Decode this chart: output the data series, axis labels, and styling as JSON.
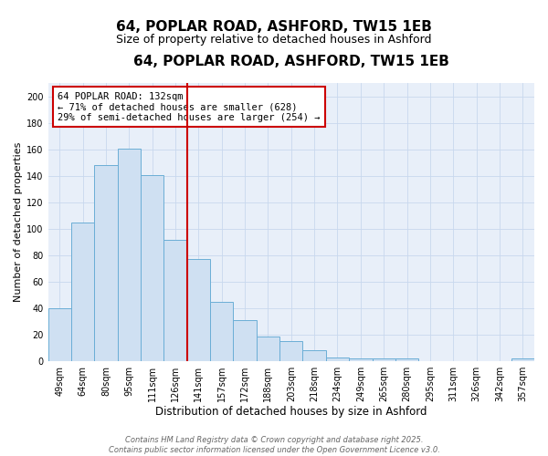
{
  "title": "64, POPLAR ROAD, ASHFORD, TW15 1EB",
  "subtitle": "Size of property relative to detached houses in Ashford",
  "xlabel": "Distribution of detached houses by size in Ashford",
  "ylabel": "Number of detached properties",
  "bin_labels": [
    "49sqm",
    "64sqm",
    "80sqm",
    "95sqm",
    "111sqm",
    "126sqm",
    "141sqm",
    "157sqm",
    "172sqm",
    "188sqm",
    "203sqm",
    "218sqm",
    "234sqm",
    "249sqm",
    "265sqm",
    "280sqm",
    "295sqm",
    "311sqm",
    "326sqm",
    "342sqm",
    "357sqm"
  ],
  "bar_heights": [
    40,
    105,
    148,
    161,
    141,
    92,
    77,
    45,
    31,
    19,
    15,
    8,
    3,
    2,
    2,
    2,
    0,
    0,
    0,
    0,
    2
  ],
  "bar_color": "#cfe0f2",
  "bar_edgecolor": "#6baed6",
  "vline_x": 5.5,
  "vline_color": "#cc0000",
  "annotation_text": "64 POPLAR ROAD: 132sqm\n← 71% of detached houses are smaller (628)\n29% of semi-detached houses are larger (254) →",
  "annotation_box_edgecolor": "#cc0000",
  "annotation_box_facecolor": "#ffffff",
  "ylim": [
    0,
    210
  ],
  "yticks": [
    0,
    20,
    40,
    60,
    80,
    100,
    120,
    140,
    160,
    180,
    200
  ],
  "grid_color": "#c8d8ee",
  "background_color": "#e8eff9",
  "footer_line1": "Contains HM Land Registry data © Crown copyright and database right 2025.",
  "footer_line2": "Contains public sector information licensed under the Open Government Licence v3.0.",
  "title_fontsize": 11,
  "subtitle_fontsize": 9,
  "xlabel_fontsize": 8.5,
  "ylabel_fontsize": 8,
  "tick_fontsize": 7,
  "annot_fontsize": 7.5,
  "footer_fontsize": 6
}
